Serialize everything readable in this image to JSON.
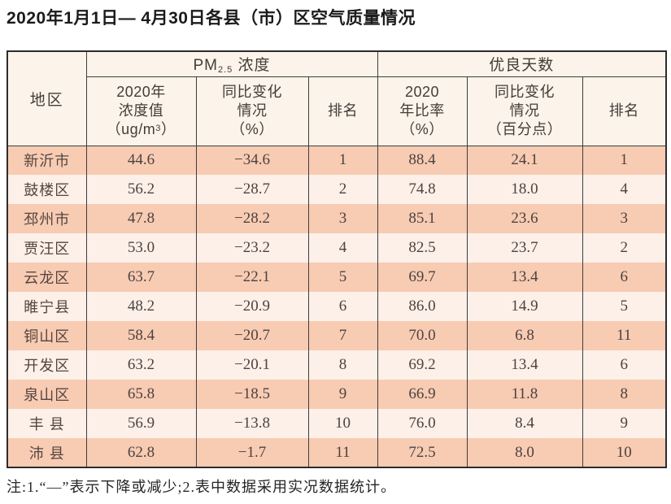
{
  "page": {
    "title": "2020年1月1日— 4月30日各县（市）区空气质量情况",
    "note": "注:1.“—”表示下降或减少;2.表中数据采用实况数据统计。"
  },
  "table": {
    "region_header": "地区",
    "groups": {
      "pm": {
        "prefix": "PM",
        "subscript": "2.5",
        "suffix": " 浓度"
      },
      "good_days": "优良天数"
    },
    "columns": {
      "pm_value": {
        "line1": "2020年",
        "line2": "浓度值",
        "line3_pre": "（ug/m",
        "line3_sup": "3",
        "line3_post": "）"
      },
      "pm_change": {
        "line1": "同比变化",
        "line2": "情况",
        "line3": "（%）"
      },
      "pm_rank": "排名",
      "good_ratio": {
        "line1": "2020",
        "line2": "年比率",
        "line3": "（%）"
      },
      "good_change": {
        "line1": "同比变化",
        "line2": "情况",
        "line3": "（百分点）"
      },
      "good_rank": "排名"
    },
    "rows": [
      {
        "region": "新沂市",
        "pm_value": "44.6",
        "pm_change": "−34.6",
        "pm_rank": "1",
        "good_ratio": "88.4",
        "good_change": "24.1",
        "good_rank": "1"
      },
      {
        "region": "鼓楼区",
        "pm_value": "56.2",
        "pm_change": "−28.7",
        "pm_rank": "2",
        "good_ratio": "74.8",
        "good_change": "18.0",
        "good_rank": "4"
      },
      {
        "region": "邳州市",
        "pm_value": "47.8",
        "pm_change": "−28.2",
        "pm_rank": "3",
        "good_ratio": "85.1",
        "good_change": "23.6",
        "good_rank": "3"
      },
      {
        "region": "贾汪区",
        "pm_value": "53.0",
        "pm_change": "−23.2",
        "pm_rank": "4",
        "good_ratio": "82.5",
        "good_change": "23.7",
        "good_rank": "2"
      },
      {
        "region": "云龙区",
        "pm_value": "63.7",
        "pm_change": "−22.1",
        "pm_rank": "5",
        "good_ratio": "69.7",
        "good_change": "13.4",
        "good_rank": "6"
      },
      {
        "region": "睢宁县",
        "pm_value": "48.2",
        "pm_change": "−20.9",
        "pm_rank": "6",
        "good_ratio": "86.0",
        "good_change": "14.9",
        "good_rank": "5"
      },
      {
        "region": "铜山区",
        "pm_value": "58.4",
        "pm_change": "−20.7",
        "pm_rank": "7",
        "good_ratio": "70.0",
        "good_change": "6.8",
        "good_rank": "11"
      },
      {
        "region": "开发区",
        "pm_value": "63.2",
        "pm_change": "−20.1",
        "pm_rank": "8",
        "good_ratio": "69.2",
        "good_change": "13.4",
        "good_rank": "6"
      },
      {
        "region": "泉山区",
        "pm_value": "65.8",
        "pm_change": "−18.5",
        "pm_rank": "9",
        "good_ratio": "66.9",
        "good_change": "11.8",
        "good_rank": "8"
      },
      {
        "region": "丰 县",
        "pm_value": "56.9",
        "pm_change": "−13.8",
        "pm_rank": "10",
        "good_ratio": "76.0",
        "good_change": "8.4",
        "good_rank": "9"
      },
      {
        "region": "沛 县",
        "pm_value": "62.8",
        "pm_change": "−1.7",
        "pm_rank": "11",
        "good_ratio": "72.5",
        "good_change": "8.0",
        "good_rank": "10"
      }
    ]
  },
  "colors": {
    "row-odd": "#f8cbb3",
    "row-even": "#fdf0e8",
    "header-bg": "#fcf4ea",
    "grid": "#3d3d3d",
    "outer-border": "#2c2c2c",
    "header-text": "#433c39",
    "cell-text": "#4c4340",
    "region-text": "#55453f",
    "title-text": "#1b1b1b",
    "note-text": "#262626"
  }
}
